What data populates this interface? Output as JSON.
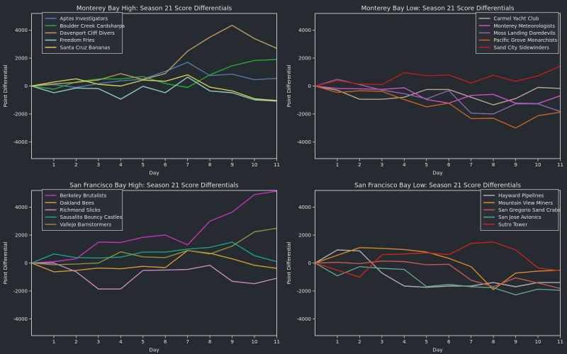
{
  "figure": {
    "background": "#262a31",
    "spine_color": "#c2c2c2",
    "text_color": "#e3e3e3",
    "title_color": "#f2f2f2",
    "legend_background": "#2b2f36",
    "legend_border": "#b9b9b9"
  },
  "chart_data": [
    {
      "type": "line",
      "title": "Monterey Bay High: Season 21 Score Differentials",
      "xlabel": "Day",
      "ylabel": "Point Differential",
      "x": [
        0,
        1,
        2,
        3,
        4,
        5,
        6,
        7,
        8,
        9,
        10,
        11
      ],
      "xticks": [
        1,
        2,
        3,
        4,
        5,
        6,
        7,
        8,
        9,
        10,
        11
      ],
      "yticks": [
        -4000,
        -2000,
        0,
        2000,
        4000
      ],
      "xlim": [
        0,
        11
      ],
      "ylim": [
        -5200,
        5200
      ],
      "grid": false,
      "legend_position": "upper-left",
      "series": [
        {
          "name": "Aptos Investigators",
          "color": "#5579a6",
          "values": [
            0,
            100,
            -100,
            170,
            370,
            490,
            1050,
            1700,
            750,
            850,
            450,
            550
          ]
        },
        {
          "name": "Boulder Creek Cardsharps",
          "color": "#2aa63c",
          "values": [
            0,
            -230,
            300,
            500,
            500,
            680,
            180,
            -100,
            800,
            1450,
            1830,
            1900
          ]
        },
        {
          "name": "Davenport Cliff Divers",
          "color": "#b89e63",
          "values": [
            0,
            150,
            260,
            430,
            890,
            460,
            900,
            2500,
            3500,
            4350,
            3400,
            2700
          ]
        },
        {
          "name": "Freedom Fries",
          "color": "#93cbc3",
          "values": [
            0,
            -480,
            -140,
            -190,
            -940,
            -20,
            -480,
            640,
            -350,
            -480,
            -990,
            -1080
          ]
        },
        {
          "name": "Santa Cruz Bananas",
          "color": "#cdcf58",
          "values": [
            0,
            290,
            520,
            120,
            0,
            430,
            340,
            800,
            -80,
            -350,
            -910,
            -1040
          ]
        }
      ]
    },
    {
      "type": "line",
      "title": "Monterey Bay Low: Season 21 Score Differentials",
      "xlabel": "Day",
      "ylabel": "Point Differential",
      "x": [
        0,
        1,
        2,
        3,
        4,
        5,
        6,
        7,
        8,
        9,
        10,
        11
      ],
      "xticks": [
        1,
        2,
        3,
        4,
        5,
        6,
        7,
        8,
        9,
        10,
        11
      ],
      "yticks": [
        -4000,
        -2000,
        0,
        2000,
        4000
      ],
      "xlim": [
        0,
        11
      ],
      "ylim": [
        -5200,
        5200
      ],
      "grid": false,
      "legend_position": "upper-right",
      "series": [
        {
          "name": "Carmel Yacht Club",
          "color": "#b3a794",
          "values": [
            0,
            -300,
            -950,
            -950,
            -800,
            -250,
            -250,
            -800,
            -1350,
            -900,
            -100,
            -170
          ]
        },
        {
          "name": "Monterey Meteorologists",
          "color": "#d44fc0",
          "values": [
            0,
            -170,
            -200,
            -240,
            -120,
            -970,
            -1230,
            -670,
            -600,
            -1230,
            -1260,
            -700
          ]
        },
        {
          "name": "Moss Landing Daredevils",
          "color": "#8a68a8",
          "values": [
            0,
            480,
            100,
            -290,
            -550,
            -920,
            -320,
            -1950,
            -2000,
            -1280,
            -1280,
            -1820
          ]
        },
        {
          "name": "Pacific Grove Monarchists",
          "color": "#c76420",
          "values": [
            0,
            -460,
            -340,
            -380,
            -970,
            -1490,
            -1230,
            -2340,
            -2310,
            -3010,
            -2130,
            -1870
          ]
        },
        {
          "name": "Sand City Sidewinders",
          "color": "#bb2020",
          "values": [
            0,
            390,
            140,
            100,
            960,
            740,
            790,
            220,
            770,
            340,
            730,
            1420
          ]
        }
      ]
    },
    {
      "type": "line",
      "title": "San Francisco Bay High: Season 21 Score Differentials",
      "xlabel": "Day",
      "ylabel": "Point Differential",
      "x": [
        0,
        1,
        2,
        3,
        4,
        5,
        6,
        7,
        8,
        9,
        10,
        11
      ],
      "xticks": [
        1,
        2,
        3,
        4,
        5,
        6,
        7,
        8,
        9,
        10,
        11
      ],
      "yticks": [
        -4000,
        -2000,
        0,
        2000,
        4000
      ],
      "xlim": [
        0,
        11
      ],
      "ylim": [
        -5200,
        5200
      ],
      "grid": false,
      "legend_position": "upper-left",
      "series": [
        {
          "name": "Berkeley Brutalists",
          "color": "#c234b8",
          "values": [
            0,
            100,
            300,
            1500,
            1470,
            1840,
            2010,
            1300,
            3000,
            3650,
            4900,
            5150
          ]
        },
        {
          "name": "Oakland Bees",
          "color": "#d49a31",
          "values": [
            0,
            -630,
            -530,
            -360,
            -410,
            -240,
            -330,
            900,
            700,
            300,
            -160,
            -380
          ]
        },
        {
          "name": "Richmond Slicks",
          "color": "#c98ac0",
          "values": [
            0,
            0,
            -630,
            -1860,
            -1860,
            -530,
            -500,
            -460,
            -160,
            -1310,
            -1480,
            -1090
          ]
        },
        {
          "name": "Sausalito Bouncy Castles",
          "color": "#1aa187",
          "values": [
            0,
            650,
            390,
            360,
            420,
            780,
            780,
            1000,
            1120,
            1500,
            530,
            100
          ]
        },
        {
          "name": "Vallejo Barnstormers",
          "color": "#8c923f",
          "values": [
            0,
            -120,
            -70,
            0,
            800,
            440,
            390,
            900,
            650,
            1210,
            2230,
            2490
          ]
        }
      ]
    },
    {
      "type": "line",
      "title": "San Francisco Bay Low: Season 21 Score Differentials",
      "xlabel": "Day",
      "ylabel": "Point Differential",
      "x": [
        0,
        1,
        2,
        3,
        4,
        5,
        6,
        7,
        8,
        9,
        10,
        11
      ],
      "xticks": [
        1,
        2,
        3,
        4,
        5,
        6,
        7,
        8,
        9,
        10,
        11
      ],
      "yticks": [
        -4000,
        -2000,
        0,
        2000,
        4000
      ],
      "xlim": [
        0,
        11
      ],
      "ylim": [
        -5200,
        5200
      ],
      "grid": false,
      "legend_position": "upper-right",
      "series": [
        {
          "name": "Hayward Pipelines",
          "color": "#a9aeb1",
          "values": [
            0,
            940,
            870,
            -720,
            -1650,
            -1740,
            -1650,
            -1650,
            -1400,
            -1700,
            -1400,
            -1400
          ]
        },
        {
          "name": "Mountain View Miners",
          "color": "#d68a2e",
          "values": [
            0,
            560,
            1100,
            1050,
            970,
            780,
            340,
            -260,
            -1910,
            -720,
            -580,
            -510
          ]
        },
        {
          "name": "San Gregorio Sand Crabs",
          "color": "#bf5a55",
          "values": [
            0,
            50,
            -40,
            140,
            100,
            -120,
            -90,
            -1230,
            -1700,
            -1060,
            -1430,
            -1820
          ]
        },
        {
          "name": "San Jose Avionics",
          "color": "#5fa38c",
          "values": [
            0,
            -920,
            -260,
            -380,
            -460,
            -1690,
            -1530,
            -1700,
            -1770,
            -2280,
            -1870,
            -1960
          ]
        },
        {
          "name": "Sutro Tower",
          "color": "#c5271f",
          "values": [
            0,
            -510,
            -1010,
            600,
            650,
            730,
            600,
            1410,
            1500,
            940,
            -350,
            -550
          ]
        }
      ]
    }
  ]
}
